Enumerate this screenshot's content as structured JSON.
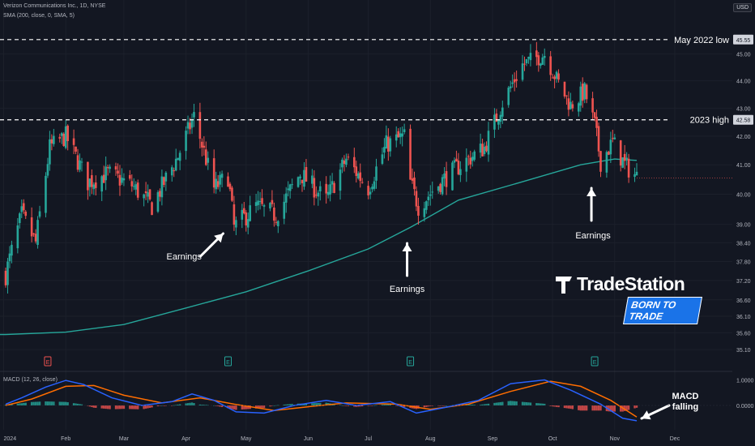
{
  "header": {
    "symbol_line": "Verizon Communications Inc., 1D, NYSE",
    "sma_line": "SMA (200, close, 0, SMA, 5)",
    "macd_line": "MACD (12, 26, close)",
    "currency": "USD"
  },
  "brand": {
    "name": "TradeStation",
    "tagline": "BORN TO TRADE"
  },
  "colors": {
    "background": "#131722",
    "up": "#26a69a",
    "down": "#ef5350",
    "sma": "#26a69a",
    "macd_line": "#2962ff",
    "signal_line": "#ff6d00",
    "annotation": "#ffffff"
  },
  "chart_data": [
    {
      "type": "candlestick",
      "title": "Verizon Communications Inc., 1D, NYSE",
      "ylim": [
        34.7,
        46.2
      ],
      "y_ticks": [
        35.1,
        35.6,
        36.1,
        36.6,
        37.2,
        37.8,
        38.4,
        39.0,
        40.0,
        41.0,
        42.0,
        43.0,
        44.0,
        45.0
      ],
      "x_ticks": [
        "2024",
        "Feb",
        "Mar",
        "Apr",
        "May",
        "Jun",
        "Jul",
        "Aug",
        "Sep",
        "Oct",
        "Nov",
        "Dec"
      ],
      "approx_closes": [
        {
          "date": "2024-01-02",
          "close": 37.4
        },
        {
          "date": "2024-01-10",
          "close": 39.3
        },
        {
          "date": "2024-01-17",
          "close": 38.4
        },
        {
          "date": "2024-01-24",
          "close": 41.6
        },
        {
          "date": "2024-02-01",
          "close": 42.0
        },
        {
          "date": "2024-02-12",
          "close": 40.4
        },
        {
          "date": "2024-02-22",
          "close": 40.7
        },
        {
          "date": "2024-03-05",
          "close": 40.3
        },
        {
          "date": "2024-03-15",
          "close": 39.6
        },
        {
          "date": "2024-03-28",
          "close": 41.3
        },
        {
          "date": "2024-04-05",
          "close": 42.7
        },
        {
          "date": "2024-04-15",
          "close": 40.2
        },
        {
          "date": "2024-04-22",
          "close": 40.6
        },
        {
          "date": "2024-04-25",
          "close": 38.9
        },
        {
          "date": "2024-05-06",
          "close": 39.6
        },
        {
          "date": "2024-05-16",
          "close": 39.3
        },
        {
          "date": "2024-05-28",
          "close": 40.7
        },
        {
          "date": "2024-06-10",
          "close": 39.8
        },
        {
          "date": "2024-06-20",
          "close": 41.2
        },
        {
          "date": "2024-07-01",
          "close": 40.2
        },
        {
          "date": "2024-07-10",
          "close": 41.7
        },
        {
          "date": "2024-07-19",
          "close": 42.0
        },
        {
          "date": "2024-07-22",
          "close": 40.4
        },
        {
          "date": "2024-07-26",
          "close": 39.6
        },
        {
          "date": "2024-08-06",
          "close": 40.4
        },
        {
          "date": "2024-08-16",
          "close": 41.0
        },
        {
          "date": "2024-08-28",
          "close": 41.6
        },
        {
          "date": "2024-09-06",
          "close": 43.2
        },
        {
          "date": "2024-09-16",
          "close": 44.6
        },
        {
          "date": "2024-09-27",
          "close": 45.0
        },
        {
          "date": "2024-10-04",
          "close": 43.9
        },
        {
          "date": "2024-10-10",
          "close": 43.1
        },
        {
          "date": "2024-10-17",
          "close": 43.6
        },
        {
          "date": "2024-10-22",
          "close": 42.4
        },
        {
          "date": "2024-10-25",
          "close": 41.1
        },
        {
          "date": "2024-10-31",
          "close": 41.8
        },
        {
          "date": "2024-11-06",
          "close": 41.0
        },
        {
          "date": "2024-11-12",
          "close": 40.6
        }
      ],
      "last_price_tag": 40.55,
      "sma200": [
        {
          "date": "2024-01-02",
          "value": 35.55
        },
        {
          "date": "2024-02-01",
          "value": 35.62
        },
        {
          "date": "2024-03-01",
          "value": 35.85
        },
        {
          "date": "2024-04-01",
          "value": 36.35
        },
        {
          "date": "2024-05-01",
          "value": 36.85
        },
        {
          "date": "2024-06-01",
          "value": 37.5
        },
        {
          "date": "2024-07-01",
          "value": 38.2
        },
        {
          "date": "2024-07-22",
          "value": 38.9
        },
        {
          "date": "2024-08-15",
          "value": 39.8
        },
        {
          "date": "2024-09-15",
          "value": 40.4
        },
        {
          "date": "2024-10-15",
          "value": 41.0
        },
        {
          "date": "2024-11-01",
          "value": 41.2
        },
        {
          "date": "2024-11-12",
          "value": 41.15
        }
      ],
      "levels": [
        {
          "label": "May 2022 low",
          "value": 45.55,
          "tag": "45.55"
        },
        {
          "label": "2023 high",
          "value": 42.58,
          "tag": "42.58"
        }
      ],
      "annotations": [
        {
          "text": "Earnings",
          "date": "2024-04-22"
        },
        {
          "text": "Earnings",
          "date": "2024-07-22"
        },
        {
          "text": "Earnings",
          "date": "2024-10-22"
        }
      ],
      "earnings_markers": [
        {
          "date": "2024-01-23",
          "label": "E"
        },
        {
          "date": "2024-04-22",
          "label": "E"
        },
        {
          "date": "2024-07-22",
          "label": "E"
        },
        {
          "date": "2024-10-22",
          "label": "E"
        }
      ]
    },
    {
      "type": "line",
      "title": "MACD (12, 26, close)",
      "ylim": [
        -0.75,
        1.1
      ],
      "y_ticks": [
        "1.0000",
        "0.0000"
      ],
      "macd": [
        {
          "date": "2024-01-02",
          "value": 0.05
        },
        {
          "date": "2024-01-10",
          "value": 0.3
        },
        {
          "date": "2024-01-22",
          "value": 0.72
        },
        {
          "date": "2024-02-01",
          "value": 0.98
        },
        {
          "date": "2024-02-10",
          "value": 0.82
        },
        {
          "date": "2024-02-24",
          "value": 0.3
        },
        {
          "date": "2024-03-10",
          "value": 0.0
        },
        {
          "date": "2024-03-25",
          "value": 0.15
        },
        {
          "date": "2024-04-04",
          "value": 0.45
        },
        {
          "date": "2024-04-15",
          "value": 0.2
        },
        {
          "date": "2024-04-26",
          "value": -0.25
        },
        {
          "date": "2024-05-10",
          "value": -0.3
        },
        {
          "date": "2024-05-25",
          "value": 0.0
        },
        {
          "date": "2024-06-10",
          "value": 0.2
        },
        {
          "date": "2024-06-25",
          "value": 0.0
        },
        {
          "date": "2024-07-12",
          "value": 0.15
        },
        {
          "date": "2024-07-25",
          "value": -0.3
        },
        {
          "date": "2024-08-10",
          "value": -0.05
        },
        {
          "date": "2024-08-25",
          "value": 0.2
        },
        {
          "date": "2024-09-10",
          "value": 0.85
        },
        {
          "date": "2024-09-27",
          "value": 1.0
        },
        {
          "date": "2024-10-10",
          "value": 0.6
        },
        {
          "date": "2024-10-25",
          "value": 0.05
        },
        {
          "date": "2024-11-05",
          "value": -0.5
        },
        {
          "date": "2024-11-12",
          "value": -0.6
        }
      ],
      "signal": [
        {
          "date": "2024-01-02",
          "value": 0.0
        },
        {
          "date": "2024-01-15",
          "value": 0.25
        },
        {
          "date": "2024-02-01",
          "value": 0.75
        },
        {
          "date": "2024-02-15",
          "value": 0.78
        },
        {
          "date": "2024-03-01",
          "value": 0.4
        },
        {
          "date": "2024-03-20",
          "value": 0.1
        },
        {
          "date": "2024-04-08",
          "value": 0.3
        },
        {
          "date": "2024-04-25",
          "value": 0.05
        },
        {
          "date": "2024-05-15",
          "value": -0.2
        },
        {
          "date": "2024-06-01",
          "value": -0.05
        },
        {
          "date": "2024-06-20",
          "value": 0.1
        },
        {
          "date": "2024-07-15",
          "value": 0.05
        },
        {
          "date": "2024-08-01",
          "value": -0.15
        },
        {
          "date": "2024-08-20",
          "value": 0.05
        },
        {
          "date": "2024-09-10",
          "value": 0.55
        },
        {
          "date": "2024-09-30",
          "value": 0.95
        },
        {
          "date": "2024-10-15",
          "value": 0.75
        },
        {
          "date": "2024-10-30",
          "value": 0.2
        },
        {
          "date": "2024-11-12",
          "value": -0.45
        }
      ],
      "annotation": {
        "text": "MACD\nfalling"
      }
    }
  ]
}
